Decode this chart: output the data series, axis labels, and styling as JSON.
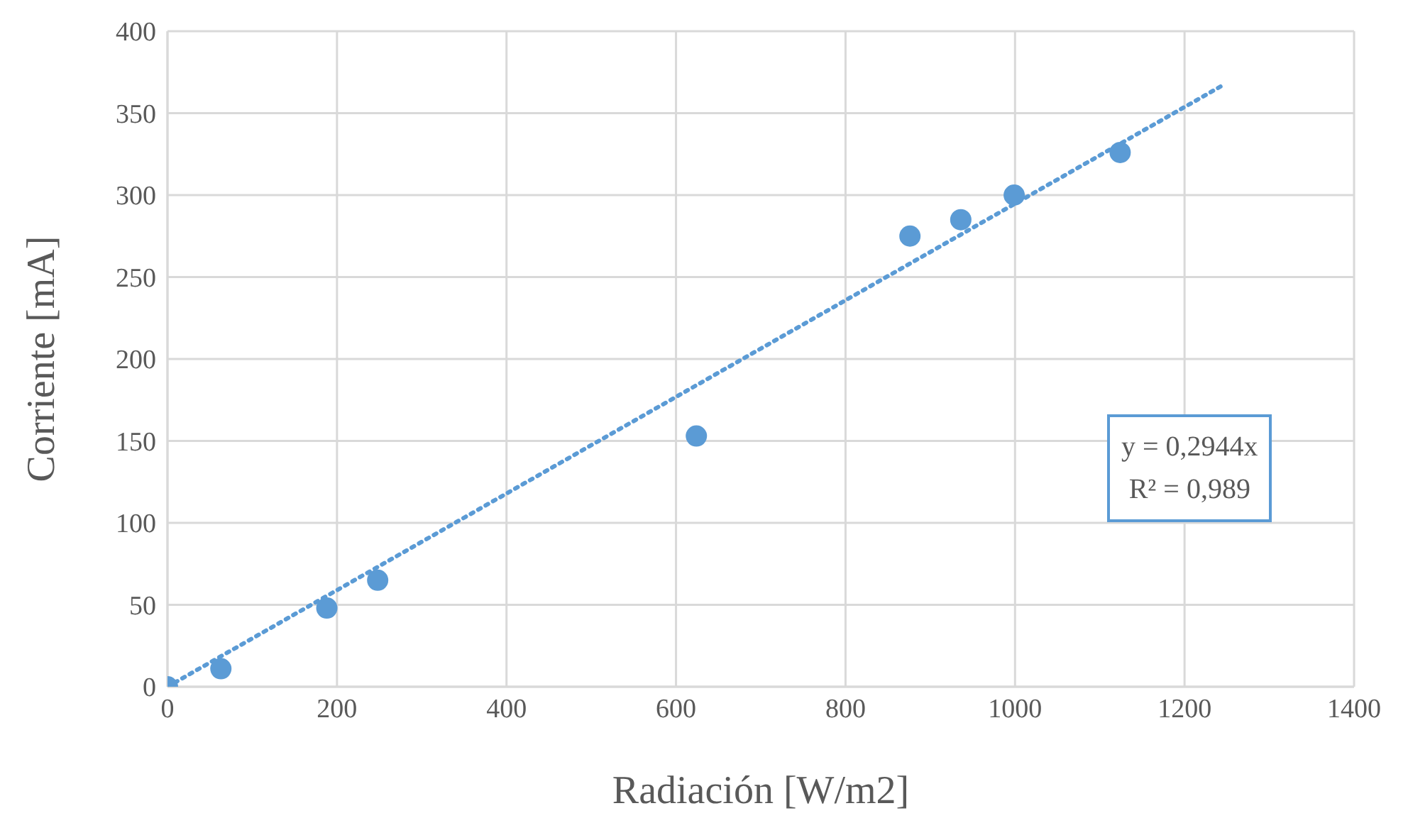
{
  "chart_data": {
    "type": "scatter",
    "xlabel": "Radiación [W/m2]",
    "ylabel": "Corriente [mA]",
    "xlim": [
      0,
      1400
    ],
    "xticks": [
      0,
      200,
      400,
      600,
      800,
      1000,
      1200,
      1400
    ],
    "ylim": [
      0,
      400
    ],
    "yticks": [
      0,
      50,
      100,
      150,
      200,
      250,
      300,
      350,
      400
    ],
    "grid": true,
    "legend": false,
    "marker": "circle",
    "series": [
      {
        "color": "#5b9bd5",
        "x": [
          0,
          63,
          188,
          248,
          624,
          876,
          936,
          999,
          1124
        ],
        "values": [
          0,
          11,
          48,
          65,
          153,
          275,
          285,
          300,
          326
        ]
      },
      {
        "type": "line",
        "color": "#5b9bd5",
        "line_style": "dotted",
        "marker": "none",
        "x": [
          0,
          1245
        ],
        "values": [
          0,
          367
        ]
      }
    ],
    "annotations": [
      "y = 0,2944x",
      "R² = 0,989"
    ]
  }
}
